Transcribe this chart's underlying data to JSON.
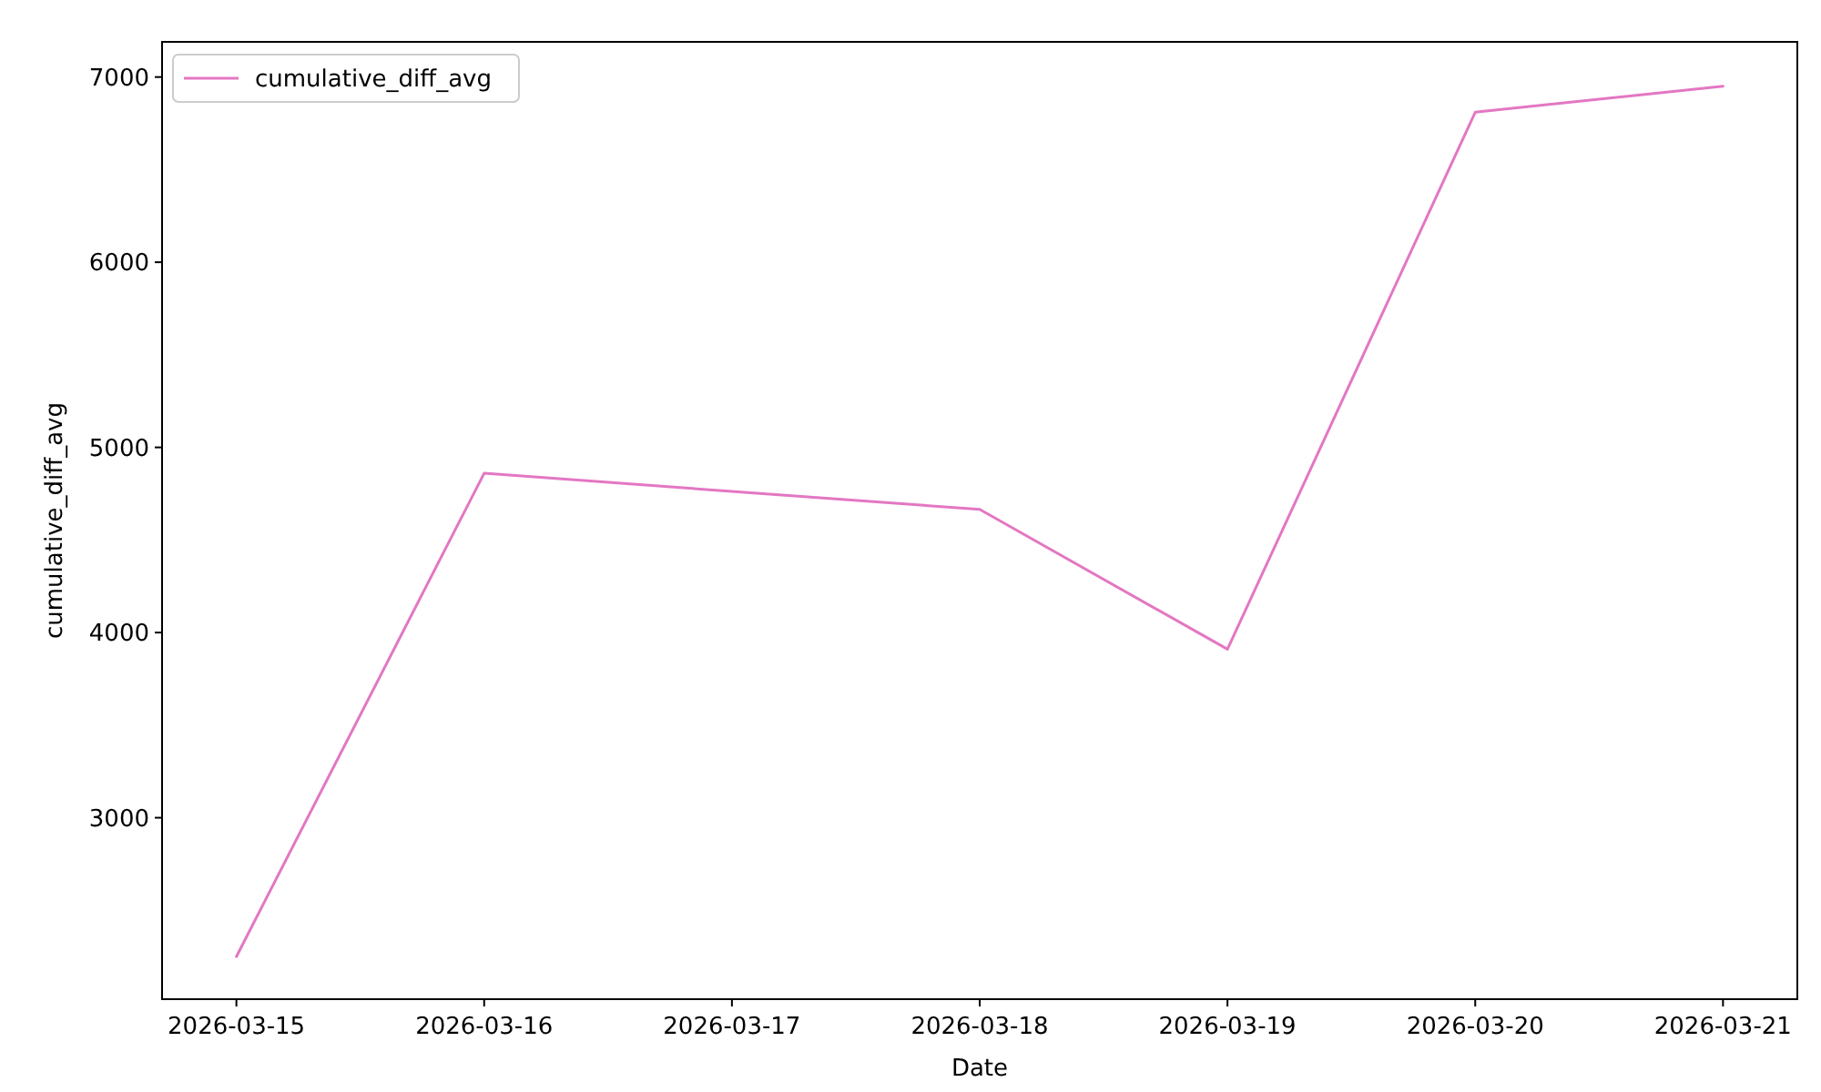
{
  "chart_data": {
    "type": "line",
    "xlabel": "Date",
    "ylabel": "cumulative_diff_avg",
    "x": [
      "2026-03-15",
      "2026-03-16",
      "2026-03-18",
      "2026-03-19",
      "2026-03-20",
      "2026-03-21"
    ],
    "series": [
      {
        "name": "cumulative_diff_avg",
        "color": "#e377c2",
        "values": [
          2250,
          4860,
          4665,
          3910,
          6810,
          6950
        ]
      }
    ],
    "xlim": [
      "2026-03-14T16:48",
      "2026-03-21T07:12"
    ],
    "xticks": [
      {
        "value": "2026-03-15",
        "label": "2026-03-15"
      },
      {
        "value": "2026-03-16",
        "label": "2026-03-16"
      },
      {
        "value": "2026-03-17",
        "label": "2026-03-17"
      },
      {
        "value": "2026-03-18",
        "label": "2026-03-18"
      },
      {
        "value": "2026-03-19",
        "label": "2026-03-19"
      },
      {
        "value": "2026-03-20",
        "label": "2026-03-20"
      },
      {
        "value": "2026-03-21",
        "label": "2026-03-21"
      }
    ],
    "ylim": [
      2020,
      7190
    ],
    "yticks": [
      3000,
      4000,
      5000,
      6000,
      7000
    ],
    "grid": false,
    "legend": "top left",
    "line_style": "solid",
    "marker": "none"
  }
}
